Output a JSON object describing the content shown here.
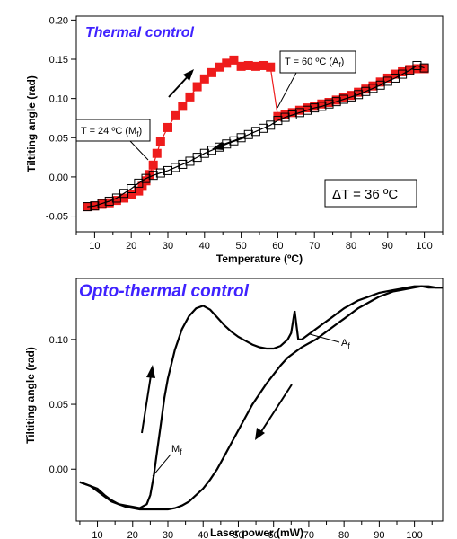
{
  "chart_data": [
    {
      "type": "scatter",
      "title": "Thermal control",
      "xlabel": "Temperature  (ºC)",
      "ylabel": "Tiltiting angle  (rad)",
      "xlim": [
        5,
        105
      ],
      "ylim": [
        -0.07,
        0.205
      ],
      "x_ticks": [
        "10",
        "20",
        "30",
        "40",
        "50",
        "60",
        "70",
        "80",
        "90",
        "100"
      ],
      "y_ticks": [
        "-0.05",
        "0.00",
        "0.05",
        "0.10",
        "0.15",
        "0.20"
      ],
      "grid": false,
      "series": [
        {
          "name": "",
          "marker": "filled-square",
          "color": "#ee1c1c",
          "x": [
            8,
            10,
            12,
            14,
            16,
            18,
            20,
            22,
            23,
            24,
            25,
            26,
            27,
            28,
            30,
            32,
            34,
            36,
            38,
            40,
            42,
            44,
            46,
            48,
            50,
            52,
            54,
            56,
            58,
            60,
            62,
            64,
            66,
            68,
            70,
            72,
            74,
            76,
            78,
            80,
            82,
            84,
            86,
            88,
            90,
            92,
            94,
            96,
            98,
            100
          ],
          "y": [
            -0.038,
            -0.037,
            -0.035,
            -0.033,
            -0.03,
            -0.027,
            -0.023,
            -0.018,
            -0.012,
            -0.005,
            0.003,
            0.015,
            0.03,
            0.045,
            0.063,
            0.078,
            0.09,
            0.102,
            0.115,
            0.125,
            0.133,
            0.14,
            0.145,
            0.149,
            0.141,
            0.142,
            0.141,
            0.142,
            0.14,
            0.077,
            0.079,
            0.082,
            0.085,
            0.088,
            0.09,
            0.093,
            0.095,
            0.098,
            0.101,
            0.104,
            0.108,
            0.112,
            0.116,
            0.121,
            0.126,
            0.131,
            0.134,
            0.137,
            0.138,
            0.138
          ]
        },
        {
          "name": "",
          "marker": "open-square",
          "color": "#000000",
          "x": [
            8,
            10,
            12,
            14,
            16,
            18,
            20,
            22,
            24,
            26,
            28,
            30,
            32,
            34,
            36,
            38,
            40,
            42,
            44,
            46,
            48,
            50,
            52,
            54,
            56,
            58,
            60,
            62,
            64,
            66,
            68,
            70,
            72,
            74,
            76,
            78,
            80,
            82,
            84,
            86,
            88,
            90,
            92,
            94,
            96,
            98,
            100
          ],
          "y": [
            -0.038,
            -0.037,
            -0.034,
            -0.031,
            -0.027,
            -0.021,
            -0.015,
            -0.008,
            -0.002,
            0.002,
            0.005,
            0.008,
            0.012,
            0.016,
            0.02,
            0.025,
            0.03,
            0.034,
            0.038,
            0.042,
            0.046,
            0.05,
            0.054,
            0.058,
            0.062,
            0.066,
            0.072,
            0.076,
            0.079,
            0.082,
            0.085,
            0.088,
            0.09,
            0.093,
            0.096,
            0.099,
            0.102,
            0.105,
            0.109,
            0.113,
            0.117,
            0.122,
            0.126,
            0.131,
            0.136,
            0.142,
            0.139
          ]
        }
      ],
      "annotations": [
        {
          "text": "T = 24 ºC (M",
          "sub": "f",
          "close": ")"
        },
        {
          "text": "T = 60 ºC (A",
          "sub": "f",
          "close": ")"
        },
        {
          "text": "ΔT = 36 ºC"
        }
      ]
    },
    {
      "type": "line",
      "title": "Opto-thermal control",
      "xlabel": "Laser power  (mW)",
      "ylabel": "Tiltiting angle  (rad)",
      "xlim": [
        4,
        108
      ],
      "ylim": [
        -0.04,
        0.147
      ],
      "x_ticks": [
        "10",
        "20",
        "30",
        "40",
        "50",
        "60",
        "70",
        "80",
        "90",
        "100"
      ],
      "y_ticks": [
        "0.00",
        "0.05",
        "0.10"
      ],
      "grid": false,
      "series": [
        {
          "name": "",
          "color": "#000000",
          "x": [
            5,
            8,
            10,
            12,
            14,
            16,
            18,
            20,
            22,
            24,
            25,
            26,
            27,
            28,
            29,
            30,
            32,
            34,
            36,
            38,
            40,
            42,
            44,
            46,
            48,
            50,
            52,
            54,
            56,
            58,
            60,
            62,
            64,
            65,
            66,
            67,
            68,
            70,
            72,
            74,
            76,
            78,
            80,
            82,
            84,
            86,
            88,
            90,
            92,
            94,
            96,
            98,
            100,
            102,
            104,
            106,
            108
          ],
          "y": [
            -0.01,
            -0.013,
            -0.015,
            -0.02,
            -0.024,
            -0.027,
            -0.028,
            -0.029,
            -0.03,
            -0.027,
            -0.02,
            -0.005,
            0.015,
            0.035,
            0.055,
            0.07,
            0.092,
            0.108,
            0.118,
            0.124,
            0.126,
            0.123,
            0.117,
            0.111,
            0.106,
            0.102,
            0.099,
            0.096,
            0.094,
            0.093,
            0.093,
            0.095,
            0.1,
            0.105,
            0.122,
            0.1,
            0.1,
            0.104,
            0.108,
            0.112,
            0.116,
            0.12,
            0.124,
            0.127,
            0.13,
            0.132,
            0.134,
            0.136,
            0.137,
            0.138,
            0.139,
            0.14,
            0.141,
            0.141,
            0.14,
            0.14,
            0.14
          ]
        },
        {
          "name": "",
          "color": "#000000",
          "x": [
            5,
            8,
            10,
            12,
            14,
            16,
            18,
            20,
            22,
            24,
            26,
            28,
            30,
            32,
            34,
            36,
            38,
            40,
            42,
            44,
            46,
            48,
            50,
            52,
            54,
            56,
            58,
            60,
            62,
            64,
            66,
            68,
            70,
            72,
            74,
            76,
            78,
            80,
            82,
            84,
            86,
            88,
            90,
            92,
            94,
            96,
            98,
            100,
            102,
            104,
            106,
            108
          ],
          "y": [
            -0.01,
            -0.013,
            -0.017,
            -0.021,
            -0.025,
            -0.027,
            -0.029,
            -0.03,
            -0.031,
            -0.031,
            -0.031,
            -0.031,
            -0.031,
            -0.03,
            -0.028,
            -0.025,
            -0.02,
            -0.015,
            -0.008,
            0.0,
            0.01,
            0.02,
            0.03,
            0.04,
            0.05,
            0.058,
            0.066,
            0.073,
            0.08,
            0.086,
            0.09,
            0.094,
            0.097,
            0.1,
            0.104,
            0.108,
            0.112,
            0.116,
            0.12,
            0.124,
            0.127,
            0.13,
            0.133,
            0.135,
            0.137,
            0.138,
            0.139,
            0.14,
            0.141,
            0.141,
            0.14,
            0.14
          ]
        }
      ],
      "annotations": [
        {
          "text": "M",
          "sub": "f"
        },
        {
          "text": "A",
          "sub": "f"
        }
      ]
    }
  ]
}
